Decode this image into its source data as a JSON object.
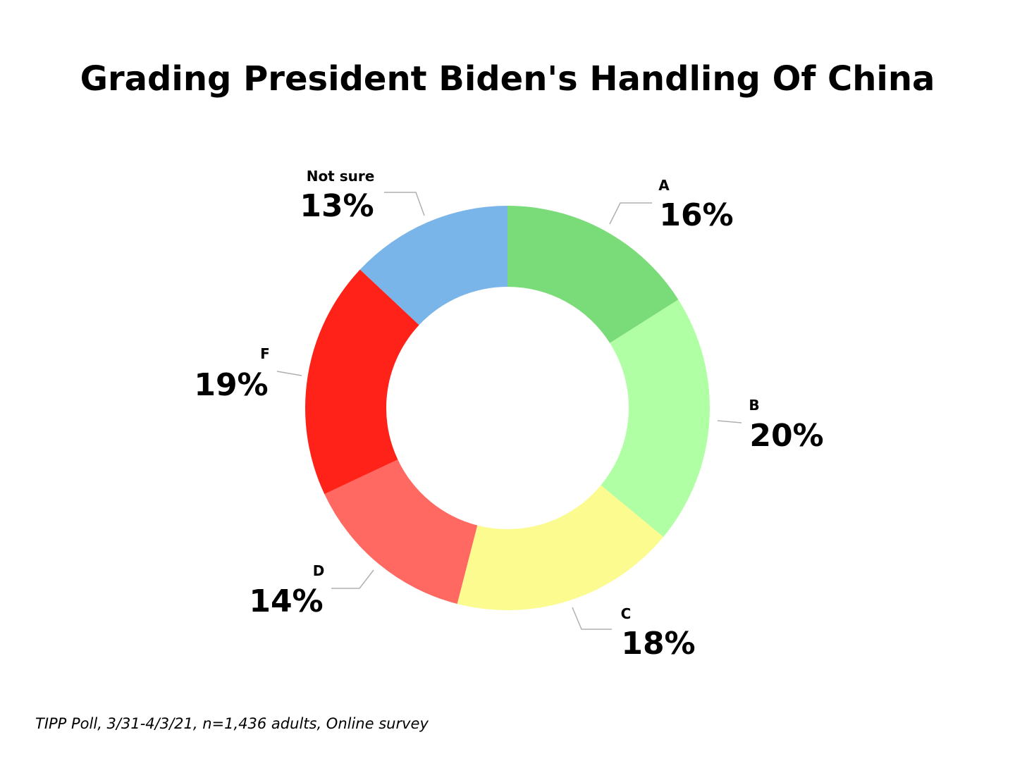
{
  "chart_data": {
    "type": "pie",
    "title": "Grading President Biden's Handling Of China",
    "donut": true,
    "slices": [
      {
        "label": "A",
        "value": 16,
        "display": "16%",
        "color": "#7ADC78"
      },
      {
        "label": "B",
        "value": 20,
        "display": "20%",
        "color": "#B0FFA4"
      },
      {
        "label": "C",
        "value": 18,
        "display": "18%",
        "color": "#FBFB8F"
      },
      {
        "label": "D",
        "value": 14,
        "display": "14%",
        "color": "#FF6961"
      },
      {
        "label": "F",
        "value": 19,
        "display": "19%",
        "color": "#FF2218"
      },
      {
        "label": "Not sure",
        "value": 13,
        "display": "13%",
        "color": "#79B5E8"
      }
    ]
  },
  "footer": {
    "source": "TIPP Poll, 3/31-4/3/21, n=1,436 adults, Online survey"
  }
}
